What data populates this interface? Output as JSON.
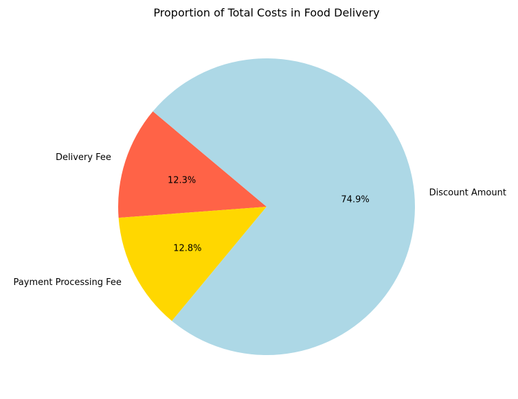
{
  "chart_data": {
    "type": "pie",
    "title": "Proportion of Total Costs in Food Delivery",
    "start_angle_deg": 140,
    "direction": "counterclockwise",
    "slices": [
      {
        "label": "Delivery Fee",
        "value": 12.3,
        "pct_label": "12.3%",
        "color": "#FF6347"
      },
      {
        "label": "Payment Processing Fee",
        "value": 12.8,
        "pct_label": "12.8%",
        "color": "#FFD700"
      },
      {
        "label": "Discount Amount",
        "value": 74.9,
        "pct_label": "74.9%",
        "color": "#ADD8E6"
      }
    ]
  }
}
